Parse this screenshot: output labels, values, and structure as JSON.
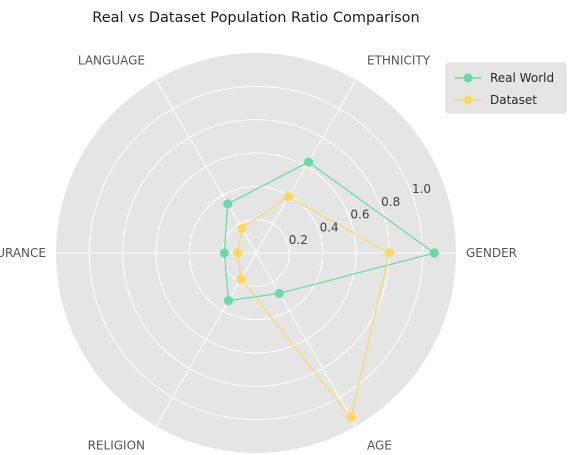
{
  "chart_data": {
    "type": "radar",
    "title": "Real vs Dataset Population Ratio Comparison",
    "categories": [
      "GENDER",
      "ETHNICITY",
      "LANGUAGE",
      "INSURANCE",
      "RELIGION",
      "AGE"
    ],
    "radial_ticks": [
      "0.2",
      "0.4",
      "0.6",
      "0.8",
      "1.0"
    ],
    "radial_tick_values": [
      0.2,
      0.4,
      0.6,
      0.8,
      1.0
    ],
    "rmax": 1.2,
    "grid": true,
    "legend_position": "top-right",
    "series": [
      {
        "name": "Real World",
        "color": "#66dba5",
        "values": [
          1.07,
          0.63,
          0.34,
          0.19,
          0.33,
          0.28
        ]
      },
      {
        "name": "Dataset",
        "color": "#fcd85d",
        "values": [
          0.8,
          0.39,
          0.17,
          0.11,
          0.18,
          1.14
        ]
      }
    ]
  }
}
